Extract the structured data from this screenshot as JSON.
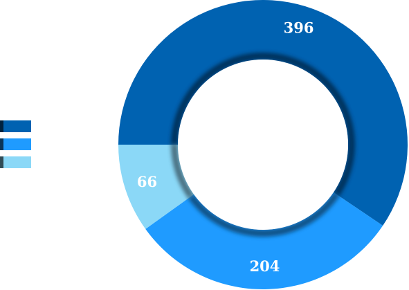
{
  "chart_data": {
    "type": "pie",
    "donut": true,
    "series": [
      {
        "value": 396,
        "label": "396",
        "color": "#0062b1"
      },
      {
        "value": 204,
        "label": "204",
        "color": "#1f9bff"
      },
      {
        "value": 66,
        "label": "66",
        "color": "#8bd8f7"
      }
    ],
    "legend_position": "left"
  }
}
